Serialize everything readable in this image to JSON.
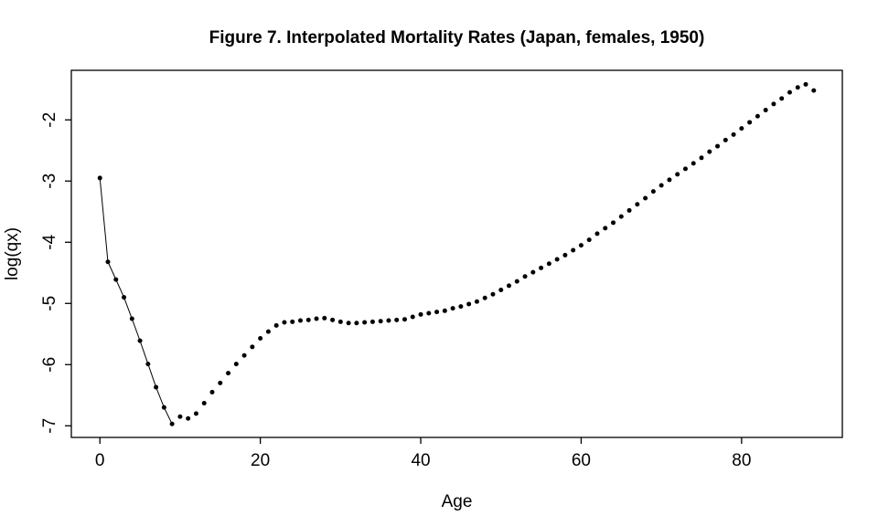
{
  "chart_data": {
    "type": "scatter",
    "title": "Figure 7. Interpolated Mortality Rates (Japan, females, 1950)",
    "xlabel": "Age",
    "ylabel": "log(qx)",
    "xlim": [
      -3.56,
      92.56
    ],
    "ylim": [
      -7.19,
      -1.19
    ],
    "x_ticks": [
      0,
      20,
      40,
      60,
      80
    ],
    "y_ticks": [
      -7,
      -6,
      -5,
      -4,
      -3,
      -2
    ],
    "grid": false,
    "legend": "none",
    "point_color": "#000000",
    "line_color": "#000000",
    "background_color": "#ffffff",
    "line_segment_age_range": [
      0,
      9
    ],
    "series": [
      {
        "name": "log mortality rate",
        "x": [
          0,
          1,
          2,
          3,
          4,
          5,
          6,
          7,
          8,
          9,
          10,
          11,
          12,
          13,
          14,
          15,
          16,
          17,
          18,
          19,
          20,
          21,
          22,
          23,
          24,
          25,
          26,
          27,
          28,
          29,
          30,
          31,
          32,
          33,
          34,
          35,
          36,
          37,
          38,
          39,
          40,
          41,
          42,
          43,
          44,
          45,
          46,
          47,
          48,
          49,
          50,
          51,
          52,
          53,
          54,
          55,
          56,
          57,
          58,
          59,
          60,
          61,
          62,
          63,
          64,
          65,
          66,
          67,
          68,
          69,
          70,
          71,
          72,
          73,
          74,
          75,
          76,
          77,
          78,
          79,
          80,
          81,
          82,
          83,
          84,
          85,
          86,
          87,
          88,
          89
        ],
        "y": [
          -2.95,
          -4.32,
          -4.61,
          -4.9,
          -5.25,
          -5.61,
          -5.99,
          -6.37,
          -6.7,
          -6.97,
          -6.85,
          -6.88,
          -6.8,
          -6.63,
          -6.45,
          -6.3,
          -6.14,
          -5.99,
          -5.85,
          -5.71,
          -5.57,
          -5.46,
          -5.36,
          -5.31,
          -5.3,
          -5.28,
          -5.27,
          -5.25,
          -5.24,
          -5.27,
          -5.3,
          -5.32,
          -5.32,
          -5.31,
          -5.3,
          -5.29,
          -5.28,
          -5.27,
          -5.26,
          -5.22,
          -5.18,
          -5.16,
          -5.14,
          -5.12,
          -5.08,
          -5.05,
          -5.01,
          -4.97,
          -4.91,
          -4.85,
          -4.78,
          -4.71,
          -4.64,
          -4.56,
          -4.49,
          -4.42,
          -4.35,
          -4.28,
          -4.21,
          -4.13,
          -4.05,
          -3.96,
          -3.86,
          -3.77,
          -3.68,
          -3.58,
          -3.48,
          -3.38,
          -3.28,
          -3.17,
          -3.07,
          -2.98,
          -2.89,
          -2.8,
          -2.71,
          -2.62,
          -2.52,
          -2.43,
          -2.33,
          -2.24,
          -2.14,
          -2.04,
          -1.94,
          -1.84,
          -1.74,
          -1.65,
          -1.55,
          -1.47,
          -1.42,
          -1.52
        ]
      }
    ]
  }
}
